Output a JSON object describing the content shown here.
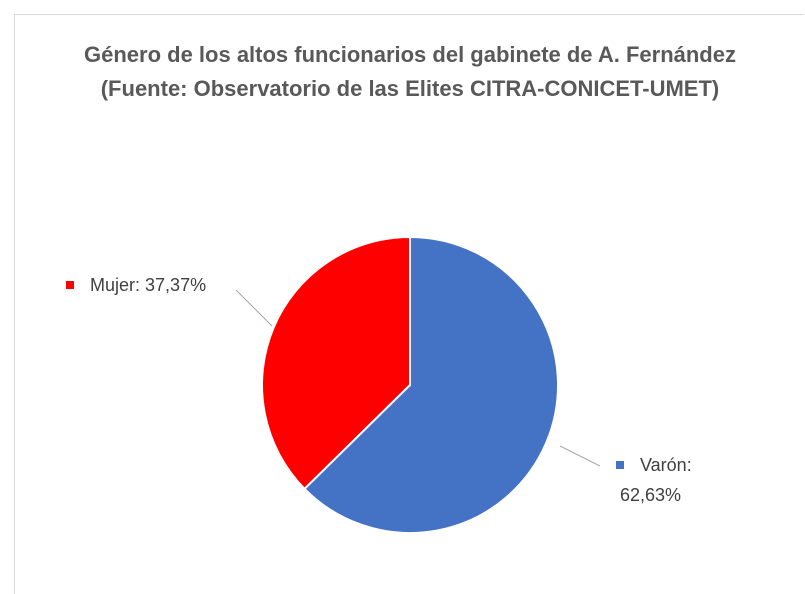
{
  "chart_data": {
    "type": "pie",
    "title": [
      "Género de los altos funcionarios del gabinete de A. Fernández",
      "(Fuente: Observatorio de las Elites CITRA-CONICET-UMET)"
    ],
    "categories": [
      "Varón:",
      "Mujer:"
    ],
    "values": [
      62.63,
      37.37
    ],
    "value_labels": [
      "62,63%",
      "37,37%"
    ],
    "colors": [
      "#4472c4",
      "#ff0000"
    ]
  }
}
